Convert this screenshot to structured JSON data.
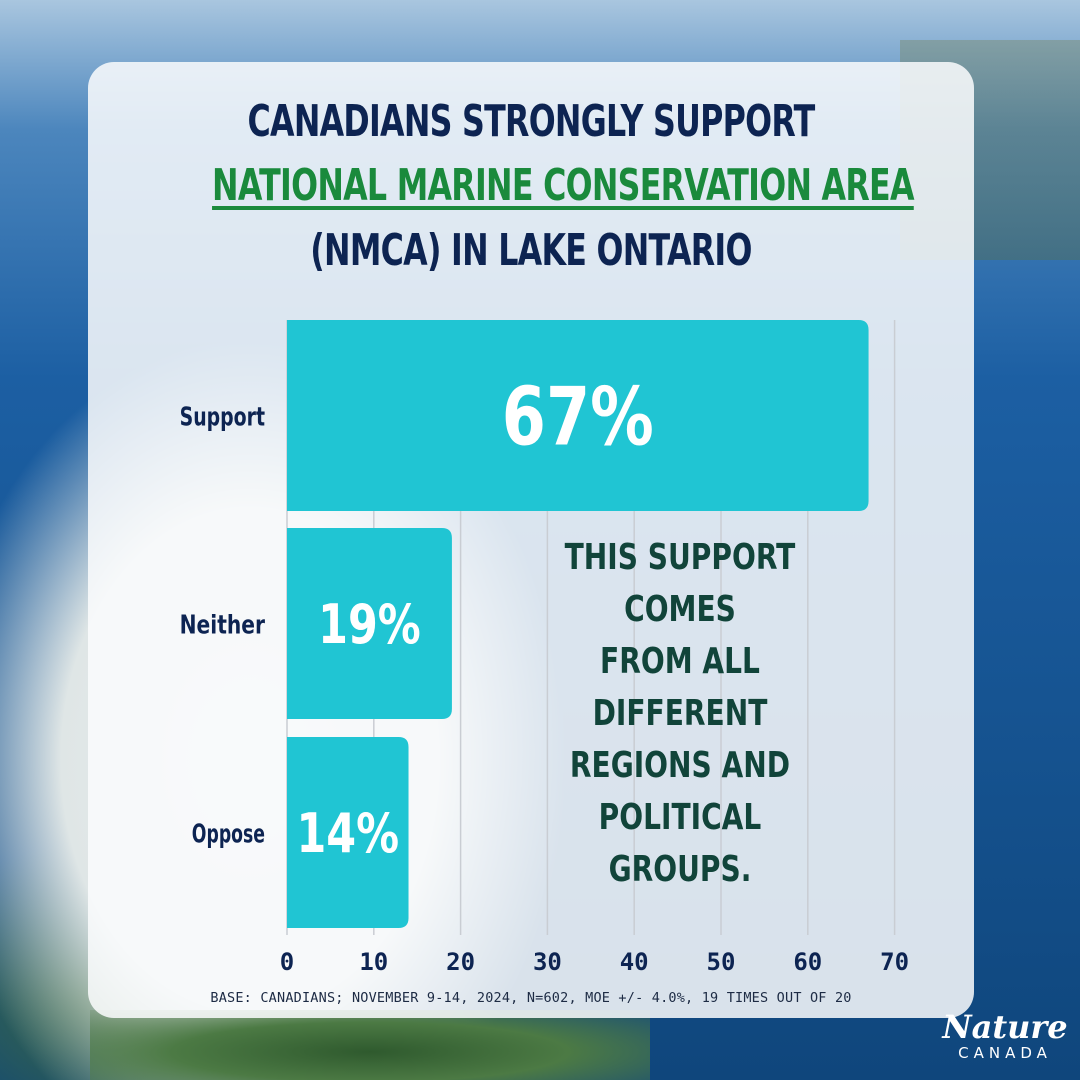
{
  "title": {
    "line1": "CANADIANS STRONGLY SUPPORT",
    "line2": "NATIONAL MARINE CONSERVATION AREA",
    "line3": "(NMCA) IN LAKE ONTARIO"
  },
  "annotation": {
    "lines": [
      "THIS SUPPORT COMES",
      "FROM ALL DIFFERENT",
      "REGIONS AND",
      "POLITICAL GROUPS."
    ]
  },
  "footnote": "BASE: CANADIANS; NOVEMBER 9-14, 2024, N=602, MOE +/- 4.0%, 19 TIMES OUT OF 20",
  "logo": {
    "top": "Nature",
    "bottom": "CANADA"
  },
  "colors": {
    "bar": "#20c5d3",
    "title_navy": "#0d2452",
    "title_green": "#1a8a3c",
    "annotation": "#11443a",
    "grid": "#c9cdd3"
  },
  "chart_data": {
    "type": "bar",
    "orientation": "horizontal",
    "categories": [
      "Support",
      "Neither",
      "Oppose"
    ],
    "values": [
      67,
      19,
      14
    ],
    "value_labels": [
      "67%",
      "19%",
      "14%"
    ],
    "x_ticks": [
      "0",
      "10",
      "20",
      "30",
      "40",
      "50",
      "60",
      "70"
    ],
    "xlim": [
      0,
      70
    ],
    "grid": true,
    "title": "CANADIANS STRONGLY SUPPORT NATIONAL MARINE CONSERVATION AREA (NMCA) IN LAKE ONTARIO",
    "xlabel": "",
    "ylabel": ""
  }
}
